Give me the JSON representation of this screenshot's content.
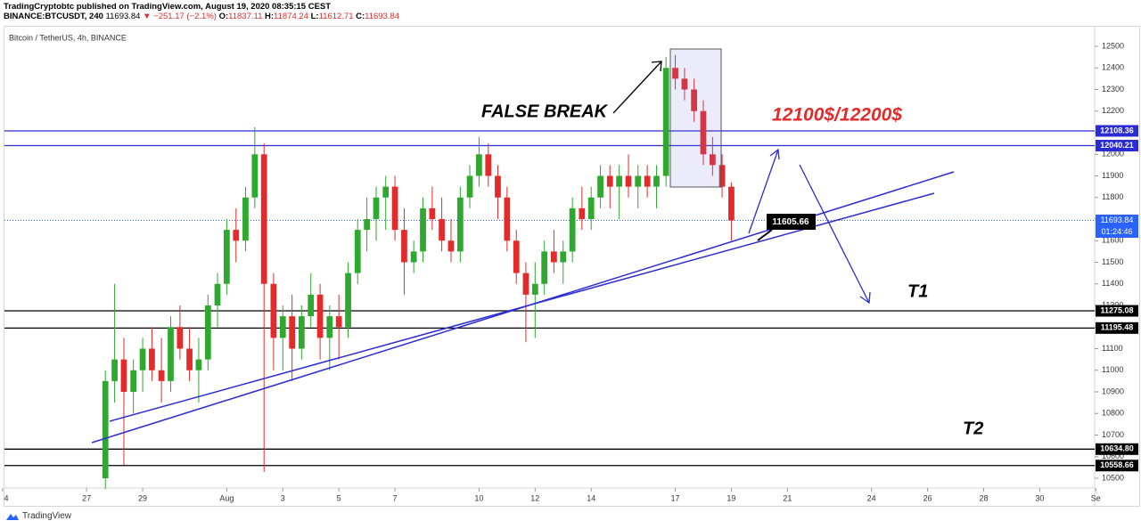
{
  "header": {
    "author_line": "TradingCryptobtc published on TradingView.com, August 19, 2020 08:35:15 CEST",
    "symbol": "BINANCE:BTCUSDT, 240",
    "last": "11693.84",
    "change": "▼ −251.17 (−2.1%)",
    "o_label": "O:",
    "o": "11837.11",
    "h_label": "H:",
    "h": "11874.24",
    "l_label": "L:",
    "l": "11612.71",
    "c_label": "C:",
    "c": "11693.84"
  },
  "footer": {
    "brand": "TradingView"
  },
  "chart_data": {
    "type": "candlestick",
    "title": "Bitcoin / TetherUS, 4h, BINANCE",
    "x": [
      27.67,
      28,
      28.33,
      28.67,
      29,
      29.33,
      29.67,
      30,
      30.33,
      30.67,
      31,
      31.33,
      31.67,
      32,
      32.33,
      32.67,
      33,
      33.33,
      33.67,
      34,
      34.33,
      34.67,
      35,
      35.33,
      35.67,
      36,
      36.33,
      36.67,
      37,
      37.33,
      37.67,
      38,
      38.33,
      38.67,
      39,
      39.33,
      39.67,
      40,
      40.33,
      40.67,
      41,
      41.33,
      41.67,
      42,
      42.33,
      42.67,
      43,
      43.33,
      43.67,
      44,
      44.33,
      44.67,
      45,
      45.33,
      45.67,
      46,
      46.33,
      46.67,
      47,
      47.33,
      47.67,
      48,
      48.33,
      48.67,
      49,
      49.33,
      49.67,
      50
    ],
    "open": [
      10500,
      10950,
      11050,
      10900,
      11000,
      11100,
      11000,
      10950,
      11200,
      11100,
      11000,
      11050,
      11300,
      11400,
      11650,
      11600,
      11800,
      12000,
      11400,
      11150,
      11250,
      11100,
      11250,
      11350,
      11150,
      11250,
      11200,
      11450,
      11650,
      11700,
      11800,
      11850,
      11650,
      11500,
      11550,
      11750,
      11700,
      11600,
      11550,
      11800,
      11900,
      12000,
      11900,
      11800,
      11600,
      11450,
      11350,
      11400,
      11550,
      11500,
      11550,
      11750,
      11700,
      11800,
      11900,
      11850,
      11900,
      11850,
      11900,
      11850,
      11900,
      12400,
      12350,
      12300,
      12200,
      12000,
      11950,
      11850
    ],
    "high": [
      11000,
      11400,
      11150,
      11050,
      11150,
      11200,
      11150,
      11250,
      11300,
      11200,
      11150,
      11350,
      11450,
      11700,
      11750,
      11850,
      12125,
      12050,
      11450,
      11300,
      11350,
      11300,
      11450,
      11400,
      11300,
      11350,
      11500,
      11700,
      11800,
      11850,
      11900,
      11900,
      11750,
      11600,
      11800,
      11850,
      11800,
      11700,
      11850,
      11950,
      12080,
      12050,
      11950,
      11850,
      11650,
      11500,
      11500,
      11600,
      11650,
      11600,
      11800,
      11850,
      11850,
      11950,
      11950,
      11950,
      12000,
      11950,
      11950,
      11950,
      12450,
      12460,
      12400,
      12350,
      12250,
      12080,
      12000,
      11870
    ],
    "low": [
      10450,
      10850,
      10560,
      10800,
      10900,
      10950,
      10850,
      10900,
      11050,
      10950,
      10850,
      11000,
      11200,
      11350,
      11500,
      11550,
      11750,
      10530,
      11000,
      11000,
      10950,
      11050,
      11200,
      11050,
      11000,
      11050,
      11150,
      11400,
      11550,
      11600,
      11650,
      11600,
      11350,
      11450,
      11500,
      11650,
      11550,
      11500,
      11500,
      11750,
      11850,
      11850,
      11700,
      11550,
      11400,
      11130,
      11150,
      11350,
      11450,
      11400,
      11500,
      11650,
      11650,
      11750,
      11750,
      11700,
      11800,
      11750,
      11800,
      11750,
      11850,
      12300,
      12250,
      12150,
      11950,
      11900,
      11800,
      11600
    ],
    "close": [
      10950,
      11050,
      10900,
      11000,
      11100,
      11000,
      10950,
      11200,
      11100,
      11000,
      11050,
      11300,
      11400,
      11650,
      11600,
      11800,
      12000,
      11400,
      11150,
      11250,
      11100,
      11250,
      11350,
      11150,
      11250,
      11200,
      11450,
      11650,
      11700,
      11800,
      11850,
      11650,
      11500,
      11550,
      11750,
      11700,
      11600,
      11550,
      11800,
      11900,
      12000,
      11900,
      11800,
      11600,
      11450,
      11350,
      11400,
      11550,
      11500,
      11550,
      11750,
      11700,
      11800,
      11900,
      11850,
      11900,
      11850,
      11900,
      11850,
      11900,
      12400,
      12350,
      12300,
      12200,
      12000,
      11950,
      11850,
      11693.84
    ],
    "up_color": "#2ea82e",
    "down_color": "#e32b2b",
    "xlim": [
      24.07,
      62.96
    ],
    "xticks": [
      {
        "value": 24,
        "label": "4"
      },
      27,
      29,
      {
        "value": 32,
        "label": "Aug"
      },
      {
        "value": 34,
        "label": "3"
      },
      {
        "value": 36,
        "label": "5"
      },
      {
        "value": 38,
        "label": "7"
      },
      {
        "value": 41,
        "label": "10"
      },
      {
        "value": 43,
        "label": "12"
      },
      {
        "value": 45,
        "label": "14"
      },
      {
        "value": 48,
        "label": "17"
      },
      {
        "value": 50,
        "label": "19"
      },
      {
        "value": 52,
        "label": "21"
      },
      {
        "value": 55,
        "label": "24"
      },
      {
        "value": 57,
        "label": "26"
      },
      {
        "value": 59,
        "label": "28"
      },
      {
        "value": 61,
        "label": "30"
      },
      {
        "value": 63,
        "label": "Se"
      }
    ],
    "ylim": [
      10454.6,
      12590.7
    ],
    "yticks": [
      10500,
      10600,
      10700,
      10800,
      10900,
      11000,
      11100,
      11200,
      11300,
      11400,
      11500,
      11600,
      11700,
      11800,
      11900,
      12000,
      12100,
      12200,
      12300,
      12400,
      12500
    ],
    "grid": false,
    "levels": [
      {
        "value": 12108.36,
        "color": "#2b2bd6"
      },
      {
        "value": 12040.21,
        "color": "#2b2bd6"
      },
      {
        "value": 11275.08,
        "color": "#000000"
      },
      {
        "value": 11195.48,
        "color": "#000000"
      },
      {
        "value": 10634.8,
        "label": "10634.80",
        "color": "#000000"
      },
      {
        "value": 10558.66,
        "color": "#000000"
      }
    ],
    "last_price": {
      "value": 11693.84,
      "color": "#2962ff"
    },
    "countdown": "01:24:46",
    "price_marker": 11605.66,
    "annotations": {
      "false_break": "FALSE BREAK",
      "target_zone": "12100$/12200$",
      "t1": "T1",
      "t2": "T2"
    }
  }
}
